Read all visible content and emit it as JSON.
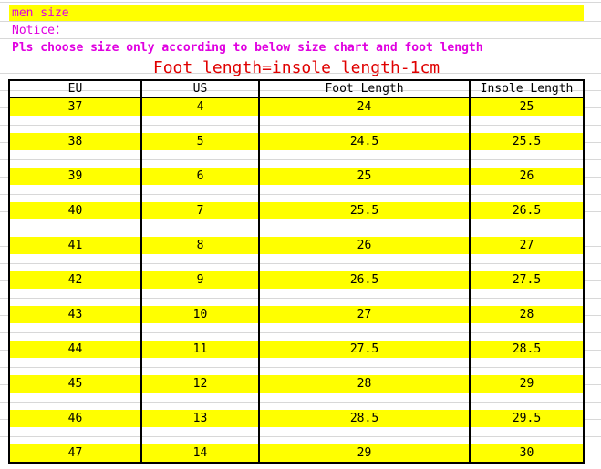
{
  "header": {
    "label": "men size",
    "notice": "Notice：",
    "instruction": "Pls choose size only according to below size chart and foot length",
    "formula": "Foot length=insole length-1cm"
  },
  "table": {
    "columns": [
      "EU",
      "US",
      "Foot Length",
      "Insole Length"
    ],
    "rows": [
      [
        "37",
        "4",
        "24",
        "25"
      ],
      [
        "38",
        "5",
        "24.5",
        "25.5"
      ],
      [
        "39",
        "6",
        "25",
        "26"
      ],
      [
        "40",
        "7",
        "25.5",
        "26.5"
      ],
      [
        "41",
        "8",
        "26",
        "27"
      ],
      [
        "42",
        "9",
        "26.5",
        "27.5"
      ],
      [
        "43",
        "10",
        "27",
        "28"
      ],
      [
        "44",
        "11",
        "27.5",
        "28.5"
      ],
      [
        "45",
        "12",
        "28",
        "29"
      ],
      [
        "46",
        "13",
        "28.5",
        "29.5"
      ],
      [
        "47",
        "14",
        "29",
        "30"
      ]
    ]
  }
}
